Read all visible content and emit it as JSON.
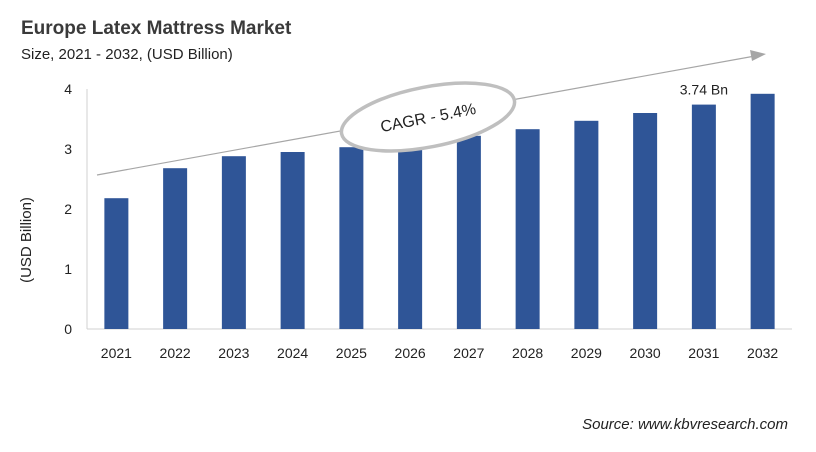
{
  "chart_data": {
    "type": "bar",
    "title": "Europe Latex Mattress Market",
    "subtitle": "Size, 2021 - 2032, (USD Billion)",
    "xlabel": "",
    "ylabel": "(USD Billion)",
    "ylim": [
      0,
      4
    ],
    "yticks": [
      "0",
      "1",
      "2",
      "3",
      "4"
    ],
    "grid": false,
    "categories": [
      "2021",
      "2022",
      "2023",
      "2024",
      "2025",
      "2026",
      "2027",
      "2028",
      "2029",
      "2030",
      "2031",
      "2032"
    ],
    "values": [
      2.18,
      2.68,
      2.88,
      2.95,
      3.03,
      3.12,
      3.22,
      3.33,
      3.47,
      3.6,
      3.74,
      3.92
    ],
    "bar_color": "#2f5597",
    "annotations": {
      "value_label": "3.74 Bn",
      "value_label_category": "2031",
      "cagr": "CAGR - 5.4%"
    },
    "source": "Source: www.kbvresearch.com"
  }
}
